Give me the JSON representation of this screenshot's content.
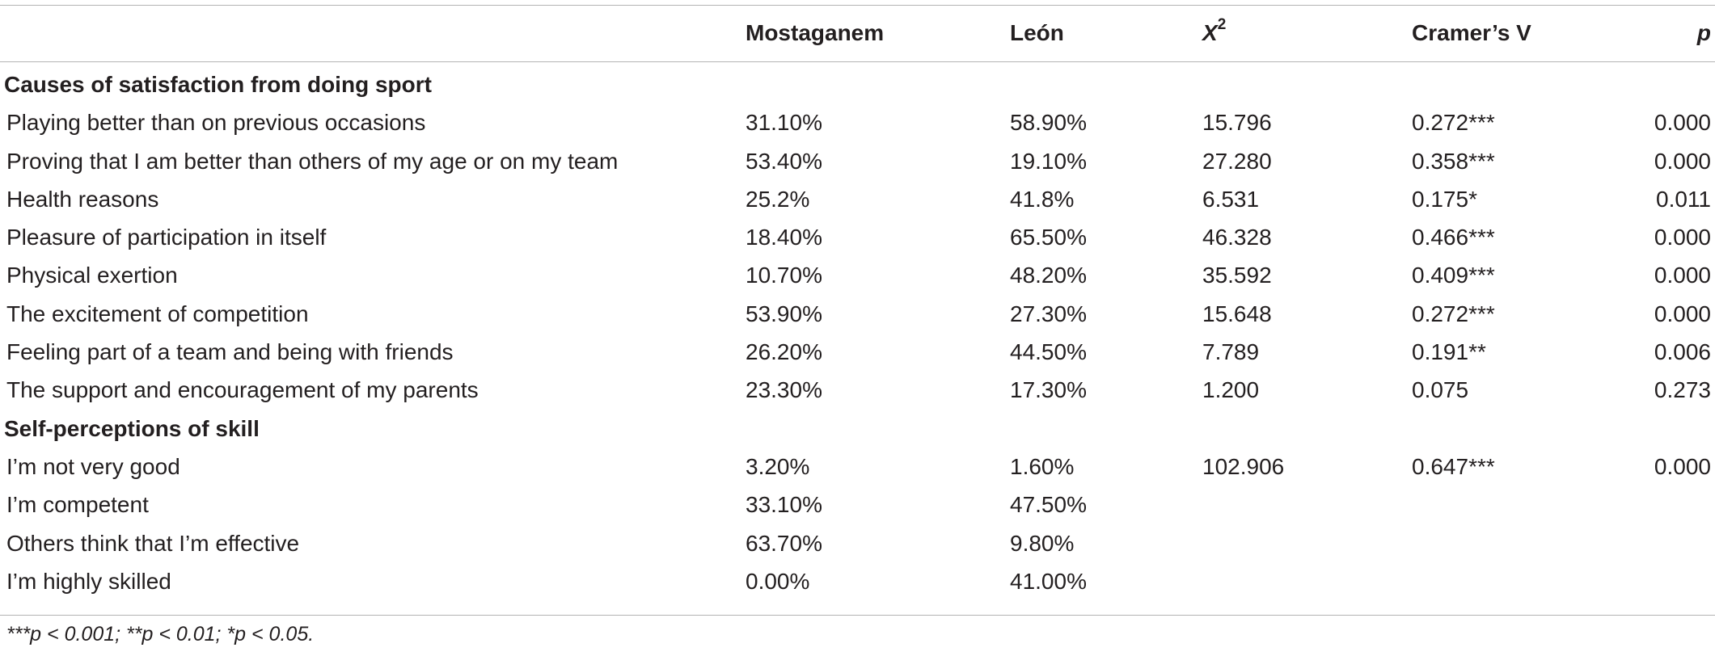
{
  "table": {
    "headers": [
      "",
      "Mostaganem",
      "León",
      "X",
      "Cramer’s V",
      "p"
    ],
    "chi_superscript": "2",
    "sections": [
      {
        "title": "Causes of satisfaction from doing sport",
        "rows": [
          [
            "Playing better than on previous occasions",
            "31.10%",
            "58.90%",
            "15.796",
            "0.272***",
            "0.000"
          ],
          [
            "Proving that I am better than others of my age or on my team",
            "53.40%",
            "19.10%",
            "27.280",
            "0.358***",
            "0.000"
          ],
          [
            "Health reasons",
            "25.2%",
            "41.8%",
            "6.531",
            "0.175*",
            "0.011"
          ],
          [
            "Pleasure of participation in itself",
            "18.40%",
            "65.50%",
            "46.328",
            "0.466***",
            "0.000"
          ],
          [
            "Physical exertion",
            "10.70%",
            "48.20%",
            "35.592",
            "0.409***",
            "0.000"
          ],
          [
            "The excitement of competition",
            "53.90%",
            "27.30%",
            "15.648",
            "0.272***",
            "0.000"
          ],
          [
            "Feeling part of a team and being with friends",
            "26.20%",
            "44.50%",
            "7.789",
            "0.191**",
            "0.006"
          ],
          [
            "The support and encouragement of my parents",
            "23.30%",
            "17.30%",
            "1.200",
            "0.075",
            "0.273"
          ]
        ]
      },
      {
        "title": "Self-perceptions of skill",
        "rows": [
          [
            "I’m not very good",
            "3.20%",
            "1.60%",
            "102.906",
            "0.647***",
            "0.000"
          ],
          [
            "I’m competent",
            "33.10%",
            "47.50%",
            "",
            "",
            ""
          ],
          [
            "Others think that I’m effective",
            "63.70%",
            "9.80%",
            "",
            "",
            ""
          ],
          [
            "I’m highly skilled",
            "0.00%",
            "41.00%",
            "",
            "",
            ""
          ]
        ]
      }
    ]
  },
  "footnote": "***p < 0.001; **p < 0.01; *p < 0.05."
}
